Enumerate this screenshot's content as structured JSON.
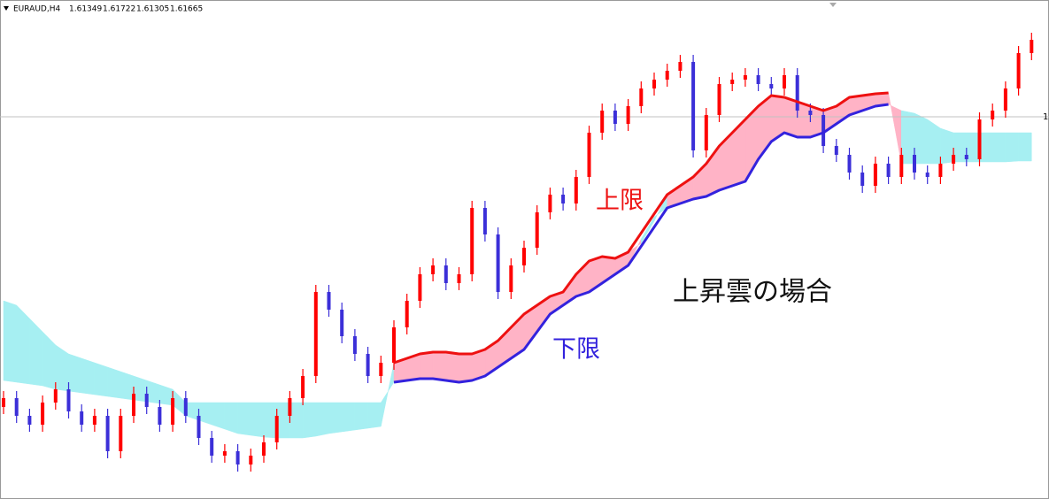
{
  "chart_data": {
    "type": "candlestick",
    "symbol": "EURAUD,H4",
    "ohlc_header": [
      1.61349,
      1.61722,
      1.61305,
      1.61665
    ],
    "annotations": {
      "upper": "上限",
      "lower": "下限",
      "caption": "上昇雲の場合"
    },
    "ylim": [
      0,
      564
    ],
    "hline": 432,
    "hline_label": "1",
    "up_color": "#ff0000",
    "down_color": "#3b2fd8",
    "bull_cloud_color": "#ffb3c6",
    "bear_cloud_color": "#a6eff2",
    "upper_line_color": "#ee1111",
    "lower_line_color": "#3322dd",
    "open": [
      104,
      114,
      94,
      84,
      109,
      124,
      99,
      84,
      94,
      54,
      94,
      119,
      104,
      84,
      114,
      94,
      69,
      49,
      54,
      39,
      49,
      64,
      94,
      114,
      139,
      234,
      214,
      184,
      164,
      139,
      154,
      194,
      224,
      254,
      264,
      244,
      254,
      329,
      299,
      234,
      264,
      284,
      324,
      344,
      334,
      364,
      414,
      439,
      424,
      444,
      464,
      474,
      484,
      494,
      394,
      434,
      469,
      474,
      479,
      469,
      464,
      479,
      439,
      434,
      399,
      389,
      369,
      354,
      379,
      364,
      389,
      369,
      364,
      379,
      389,
      384,
      429,
      439,
      464,
      504
    ],
    "high": [
      122,
      122,
      102,
      117,
      132,
      132,
      107,
      102,
      102,
      102,
      127,
      127,
      112,
      122,
      122,
      102,
      77,
      62,
      62,
      57,
      72,
      102,
      122,
      147,
      242,
      242,
      222,
      192,
      172,
      162,
      202,
      232,
      262,
      272,
      272,
      262,
      337,
      337,
      307,
      272,
      292,
      332,
      352,
      352,
      372,
      422,
      447,
      447,
      452,
      472,
      482,
      492,
      502,
      502,
      442,
      477,
      482,
      487,
      487,
      477,
      487,
      487,
      447,
      442,
      407,
      397,
      377,
      387,
      387,
      397,
      397,
      377,
      387,
      397,
      397,
      437,
      447,
      472,
      512,
      527
    ],
    "low": [
      96,
      86,
      76,
      76,
      101,
      91,
      76,
      76,
      46,
      46,
      86,
      96,
      76,
      76,
      86,
      61,
      41,
      41,
      31,
      31,
      41,
      56,
      86,
      106,
      131,
      206,
      176,
      156,
      131,
      131,
      146,
      186,
      216,
      246,
      236,
      236,
      246,
      291,
      226,
      226,
      256,
      276,
      316,
      326,
      326,
      356,
      406,
      416,
      416,
      436,
      456,
      466,
      476,
      386,
      386,
      426,
      461,
      466,
      461,
      456,
      456,
      431,
      426,
      391,
      381,
      361,
      346,
      346,
      356,
      356,
      361,
      356,
      356,
      371,
      376,
      376,
      421,
      431,
      456,
      496
    ],
    "close": [
      114,
      94,
      84,
      109,
      124,
      99,
      84,
      94,
      54,
      94,
      119,
      104,
      84,
      114,
      94,
      69,
      49,
      54,
      39,
      49,
      64,
      94,
      114,
      139,
      234,
      214,
      184,
      164,
      139,
      154,
      194,
      224,
      254,
      264,
      244,
      254,
      329,
      299,
      234,
      264,
      284,
      324,
      344,
      334,
      364,
      414,
      439,
      424,
      444,
      464,
      474,
      484,
      494,
      394,
      434,
      469,
      474,
      479,
      469,
      464,
      479,
      439,
      434,
      399,
      389,
      369,
      354,
      379,
      364,
      389,
      369,
      364,
      379,
      389,
      384,
      429,
      439,
      464,
      504,
      519
    ],
    "span_a": [
      134,
      132,
      130,
      128,
      124,
      122,
      120,
      118,
      116,
      114,
      112,
      110,
      108,
      106,
      94,
      89,
      84,
      79,
      74,
      72,
      70,
      69,
      69,
      69,
      71,
      74,
      76,
      78,
      80,
      82,
      154,
      159,
      164,
      166,
      166,
      164,
      164,
      169,
      179,
      194,
      209,
      219,
      229,
      234,
      254,
      269,
      274,
      272,
      279,
      289,
      314,
      344,
      354,
      364,
      379,
      399,
      414,
      429,
      444,
      456,
      454,
      449,
      444,
      439,
      444,
      454,
      456,
      458,
      459,
      379,
      379,
      379,
      379,
      381,
      381,
      381,
      381,
      381,
      382,
      382
    ],
    "span_b": [
      224,
      219,
      204,
      189,
      174,
      164,
      159,
      154,
      149,
      144,
      139,
      134,
      129,
      124,
      109,
      109,
      109,
      109,
      109,
      109,
      109,
      109,
      109,
      109,
      109,
      109,
      109,
      109,
      109,
      109,
      132,
      134,
      136,
      136,
      134,
      132,
      134,
      139,
      149,
      159,
      169,
      189,
      209,
      219,
      229,
      234,
      244,
      254,
      264,
      294,
      319,
      329,
      334,
      339,
      342,
      349,
      354,
      359,
      384,
      404,
      414,
      409,
      409,
      414,
      424,
      434,
      439,
      444,
      446,
      439,
      436,
      429,
      419,
      414,
      414,
      414,
      414,
      414,
      414,
      414
    ]
  }
}
